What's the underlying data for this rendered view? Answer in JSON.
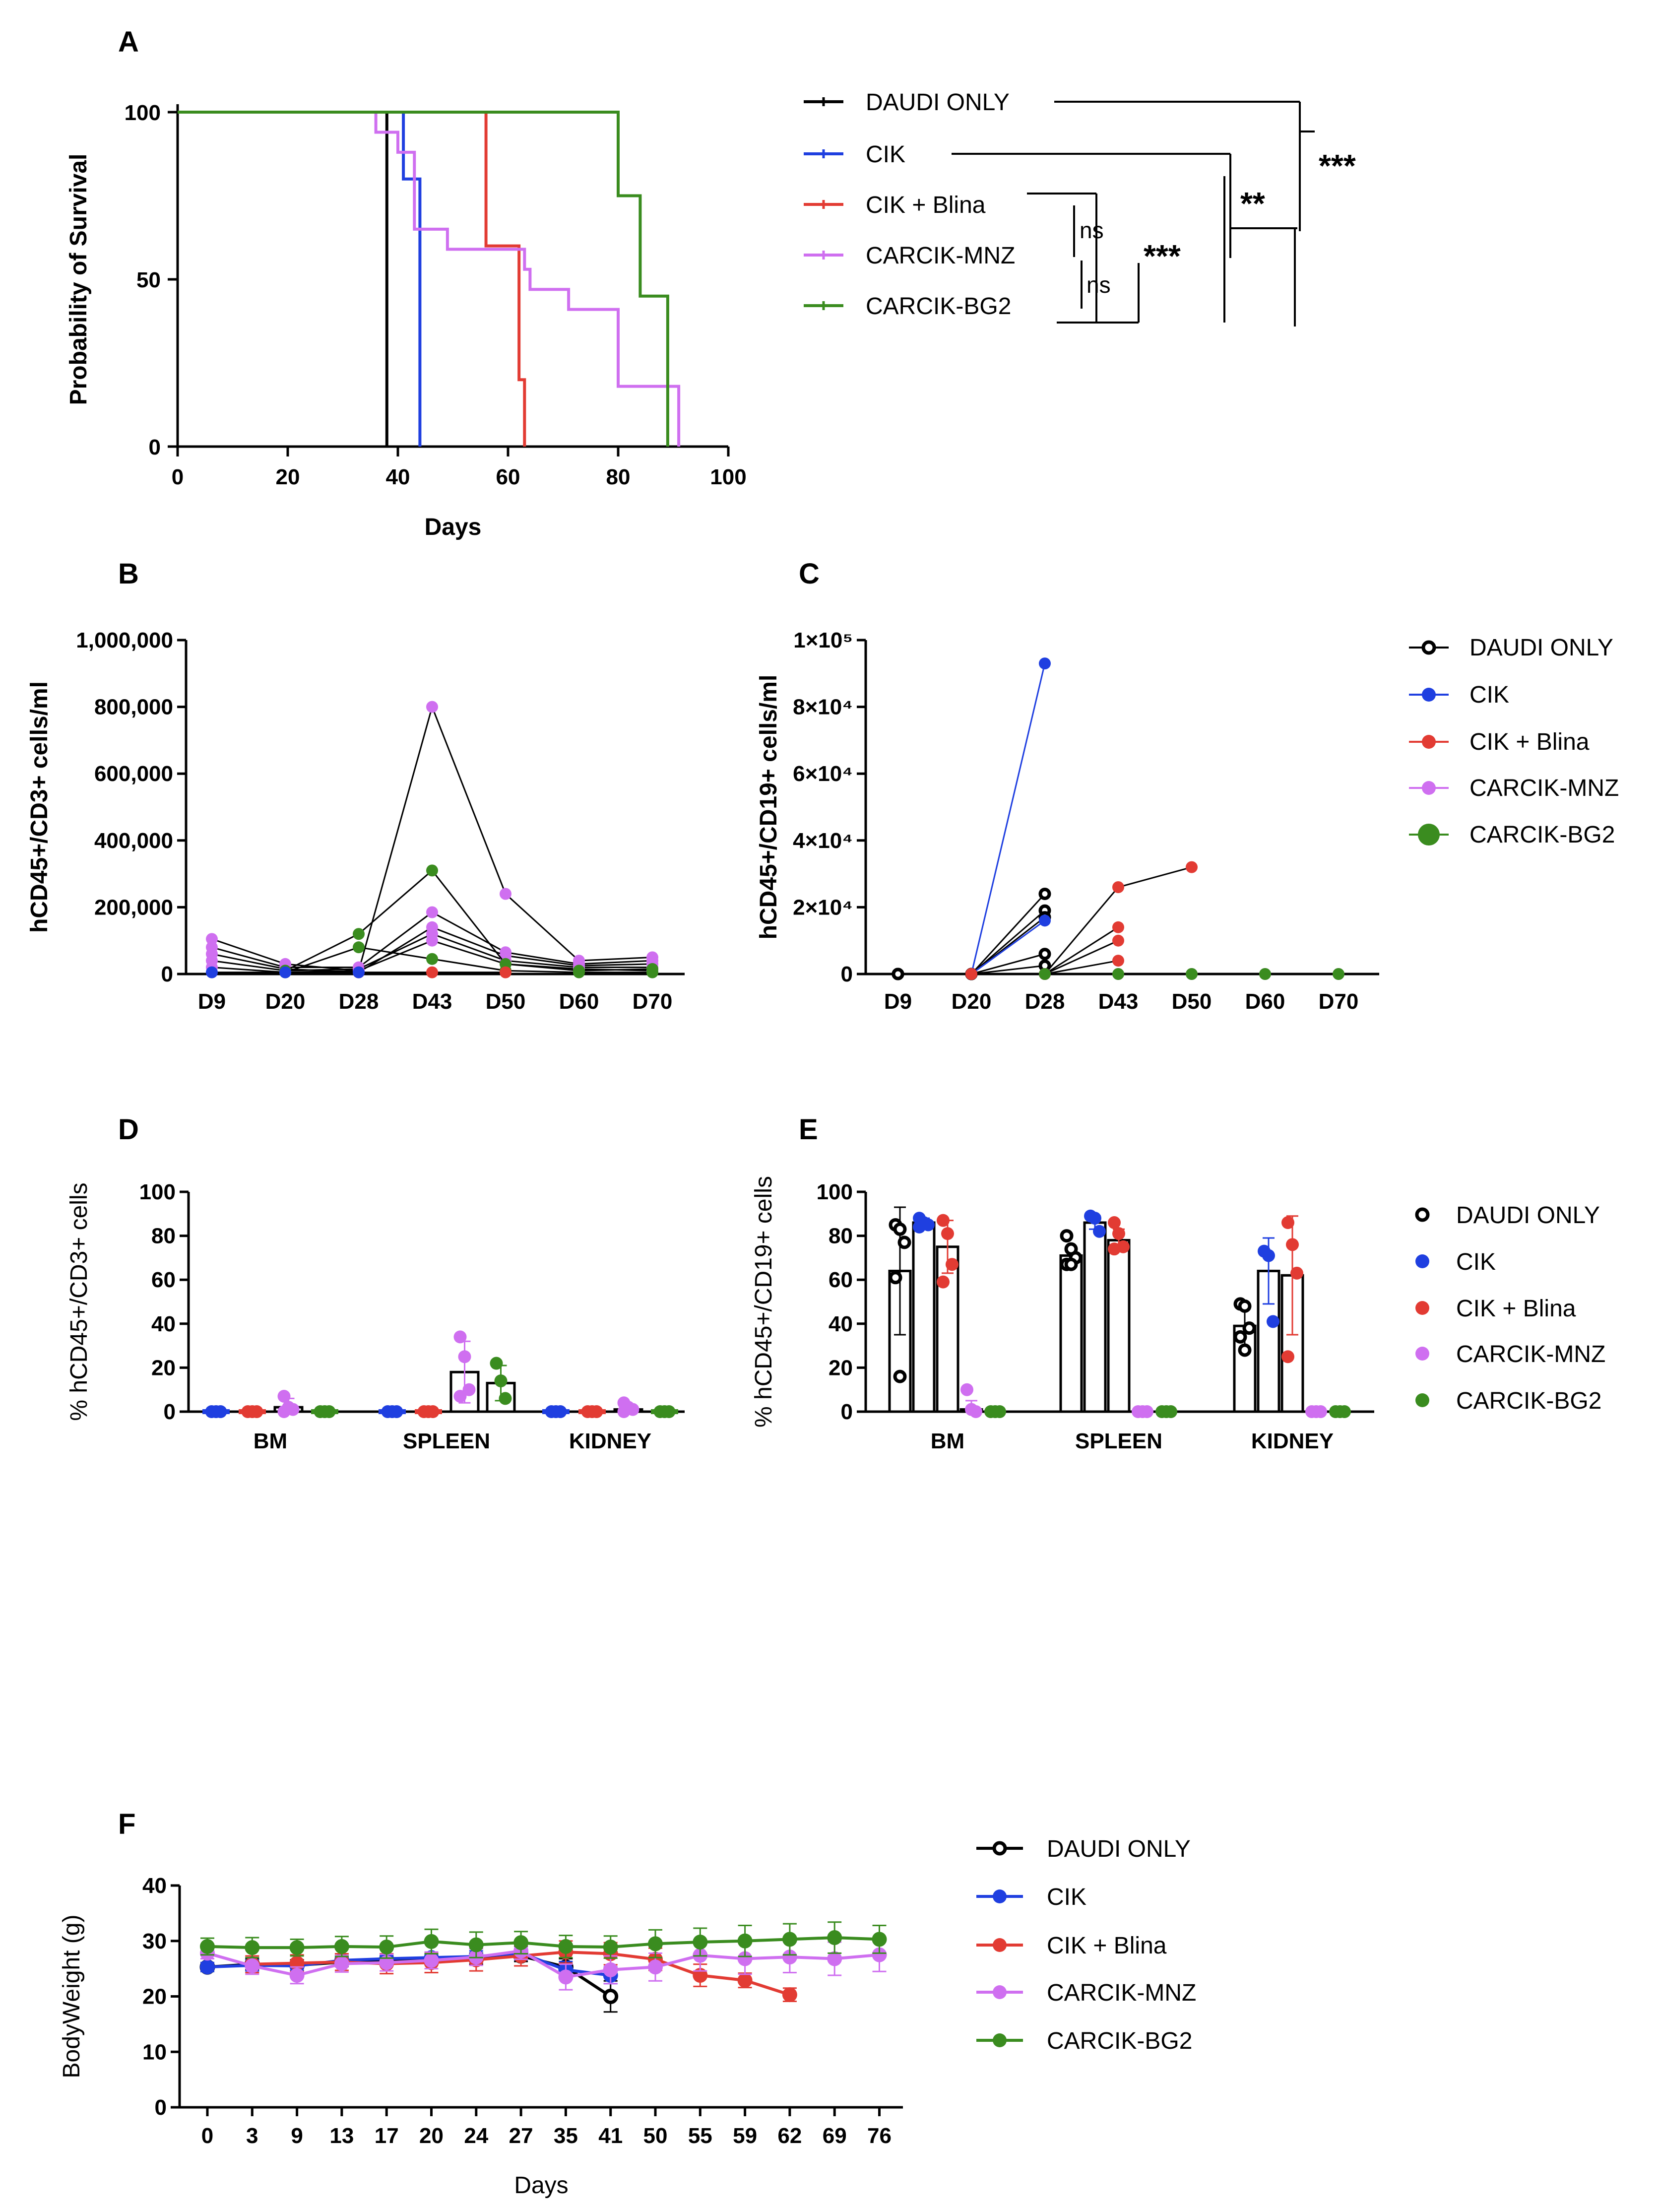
{
  "colors": {
    "daudi": "#000000",
    "cik": "#1f3fe0",
    "blina": "#e23b33",
    "mnz": "#cf6ff0",
    "bg2": "#3a8c1f"
  },
  "legend_labels": [
    "DAUDI ONLY",
    "CIK",
    "CIK + Blina",
    "CARCIK-MNZ",
    "CARCIK-BG2"
  ],
  "significance": {
    "ns1": "ns",
    "ns2": "ns",
    "s3": "***",
    "s2": "**",
    "s1": "***"
  },
  "chart_data": [
    {
      "panel": "A",
      "type": "line",
      "title": "",
      "xlabel": "Days",
      "ylabel": "Probability of Survival",
      "xlim": [
        0,
        100
      ],
      "ylim": [
        0,
        100
      ],
      "xticks": [
        "0",
        "20",
        "40",
        "60",
        "80",
        "100"
      ],
      "yticks": [
        "0",
        "50",
        "100"
      ],
      "series": [
        {
          "name": "DAUDI ONLY",
          "key": "daudi",
          "steps": [
            [
              0,
              100
            ],
            [
              38,
              100
            ],
            [
              38,
              0
            ]
          ]
        },
        {
          "name": "CIK",
          "key": "cik",
          "steps": [
            [
              0,
              100
            ],
            [
              41,
              100
            ],
            [
              41,
              80
            ],
            [
              44,
              80
            ],
            [
              44,
              0
            ]
          ]
        },
        {
          "name": "CIK + Blina",
          "key": "blina",
          "steps": [
            [
              0,
              100
            ],
            [
              56,
              100
            ],
            [
              56,
              60
            ],
            [
              62,
              60
            ],
            [
              62,
              20
            ],
            [
              63,
              20
            ],
            [
              63,
              0
            ]
          ]
        },
        {
          "name": "CARCIK-MNZ",
          "key": "mnz",
          "steps": [
            [
              0,
              100
            ],
            [
              36,
              100
            ],
            [
              36,
              94
            ],
            [
              40,
              94
            ],
            [
              40,
              88
            ],
            [
              43,
              88
            ],
            [
              43,
              65
            ],
            [
              49,
              65
            ],
            [
              49,
              59
            ],
            [
              57,
              59
            ],
            [
              57,
              59
            ],
            [
              63,
              59
            ],
            [
              63,
              53
            ],
            [
              64,
              53
            ],
            [
              64,
              47
            ],
            [
              71,
              47
            ],
            [
              71,
              41
            ],
            [
              80,
              41
            ],
            [
              80,
              18
            ],
            [
              91,
              18
            ],
            [
              91,
              0
            ]
          ]
        },
        {
          "name": "CARCIK-BG2",
          "key": "bg2",
          "steps": [
            [
              0,
              100
            ],
            [
              80,
              100
            ],
            [
              80,
              75
            ],
            [
              84,
              75
            ],
            [
              84,
              45
            ],
            [
              89,
              45
            ],
            [
              89,
              0
            ]
          ]
        }
      ]
    },
    {
      "panel": "B",
      "type": "line",
      "ylabel": "hCD45+/CD3+ cells/ml",
      "categories": [
        "D9",
        "D20",
        "D28",
        "D43",
        "D50",
        "D60",
        "D70"
      ],
      "ylim": [
        0,
        1000000
      ],
      "yticks": [
        "0",
        "200,000",
        "400,000",
        "600,000",
        "800,000",
        "1,000,000"
      ],
      "ytick_values": [
        0,
        200000,
        400000,
        600000,
        800000,
        1000000
      ],
      "series": [
        {
          "key": "mnz",
          "values": [
            105000,
            30000,
            10000,
            800000,
            240000,
            40000,
            50000
          ]
        },
        {
          "key": "mnz",
          "values": [
            80000,
            20000,
            20000,
            185000,
            65000,
            30000,
            40000
          ]
        },
        {
          "key": "mnz",
          "values": [
            60000,
            15000,
            5000,
            140000,
            55000,
            25000,
            30000
          ]
        },
        {
          "key": "mnz",
          "values": [
            40000,
            10000,
            15000,
            120000,
            40000,
            20000,
            20000
          ]
        },
        {
          "key": "mnz",
          "values": [
            20000,
            5000,
            10000,
            100000,
            30000,
            15000,
            10000
          ]
        },
        {
          "key": "bg2",
          "values": [
            null,
            10000,
            120000,
            310000,
            30000,
            10000,
            15000
          ]
        },
        {
          "key": "bg2",
          "values": [
            null,
            5000,
            80000,
            45000,
            10000,
            5000,
            5000
          ]
        },
        {
          "key": "blina",
          "values": [
            null,
            null,
            5000,
            5000,
            5000,
            null,
            null
          ]
        },
        {
          "key": "cik",
          "values": [
            5000,
            5000,
            5000,
            null,
            null,
            null,
            null
          ]
        }
      ]
    },
    {
      "panel": "C",
      "type": "line",
      "ylabel": "hCD45+/CD19+ cells/ml",
      "categories": [
        "D9",
        "D20",
        "D28",
        "D43",
        "D50",
        "D60",
        "D70"
      ],
      "ylim": [
        0,
        100000
      ],
      "yticks": [
        "0",
        "2×10⁴",
        "4×10⁴",
        "6×10⁴",
        "8×10⁴",
        "1×10⁵"
      ],
      "ytick_values": [
        0,
        20000,
        40000,
        60000,
        80000,
        100000
      ],
      "series": [
        {
          "key": "daudi",
          "values": [
            0,
            0,
            24000,
            null,
            null,
            null,
            null
          ]
        },
        {
          "key": "daudi",
          "values": [
            0,
            0,
            19000,
            null,
            null,
            null,
            null
          ]
        },
        {
          "key": "daudi",
          "values": [
            0,
            0,
            17000,
            null,
            null,
            null,
            null
          ]
        },
        {
          "key": "daudi",
          "values": [
            0,
            0,
            6000,
            null,
            null,
            null,
            null
          ]
        },
        {
          "key": "daudi",
          "values": [
            0,
            0,
            2500,
            null,
            null,
            null,
            null
          ]
        },
        {
          "key": "cik",
          "values": [
            null,
            0,
            93000,
            null,
            null,
            null,
            null
          ]
        },
        {
          "key": "cik",
          "values": [
            null,
            0,
            16000,
            null,
            null,
            null,
            null
          ]
        },
        {
          "key": "blina",
          "values": [
            null,
            0,
            0,
            26000,
            32000,
            null,
            null
          ]
        },
        {
          "key": "blina",
          "values": [
            null,
            0,
            0,
            14000,
            null,
            null,
            null
          ]
        },
        {
          "key": "blina",
          "values": [
            null,
            0,
            0,
            10000,
            null,
            null,
            null
          ]
        },
        {
          "key": "blina",
          "values": [
            null,
            0,
            0,
            4000,
            null,
            null,
            null
          ]
        },
        {
          "key": "mnz",
          "values": [
            null,
            null,
            0,
            0,
            0,
            0,
            0
          ]
        },
        {
          "key": "bg2",
          "values": [
            null,
            null,
            0,
            0,
            0,
            0,
            0
          ]
        }
      ]
    },
    {
      "panel": "D",
      "type": "bar",
      "ylabel": "% hCD45+/CD3+ cells",
      "categories": [
        "BM",
        "SPLEEN",
        "KIDNEY"
      ],
      "ylim": [
        0,
        100
      ],
      "yticks": [
        "0",
        "20",
        "40",
        "60",
        "80",
        "100"
      ],
      "groups": [
        [
          {
            "key": "cik",
            "mean": 0,
            "err": 0,
            "pts": [
              0,
              0,
              0
            ]
          },
          {
            "key": "blina",
            "mean": 0,
            "err": 0,
            "pts": [
              0,
              0,
              0
            ]
          },
          {
            "key": "mnz",
            "mean": 2,
            "err": 4,
            "pts": [
              7,
              2,
              1,
              0
            ]
          },
          {
            "key": "bg2",
            "mean": 0,
            "err": 0,
            "pts": [
              0,
              0,
              0
            ]
          }
        ],
        [
          {
            "key": "cik",
            "mean": 0,
            "err": 0,
            "pts": [
              0,
              0,
              0
            ]
          },
          {
            "key": "blina",
            "mean": 0,
            "err": 0,
            "pts": [
              0,
              0,
              0
            ]
          },
          {
            "key": "mnz",
            "mean": 18,
            "err": 14,
            "pts": [
              34,
              25,
              10,
              7
            ]
          },
          {
            "key": "bg2",
            "mean": 13,
            "err": 8,
            "pts": [
              22,
              14,
              6
            ]
          }
        ],
        [
          {
            "key": "cik",
            "mean": 0,
            "err": 0,
            "pts": [
              0,
              0,
              0
            ]
          },
          {
            "key": "blina",
            "mean": 0,
            "err": 0,
            "pts": [
              0,
              0,
              0
            ]
          },
          {
            "key": "mnz",
            "mean": 1,
            "err": 2,
            "pts": [
              4,
              2,
              1,
              0
            ]
          },
          {
            "key": "bg2",
            "mean": 0,
            "err": 0,
            "pts": [
              0,
              0,
              0
            ]
          }
        ]
      ]
    },
    {
      "panel": "E",
      "type": "bar",
      "ylabel": "% hCD45+/CD19+ cells",
      "categories": [
        "BM",
        "SPLEEN",
        "KIDNEY"
      ],
      "ylim": [
        0,
        100
      ],
      "yticks": [
        "0",
        "20",
        "40",
        "60",
        "80",
        "100"
      ],
      "groups": [
        [
          {
            "key": "daudi",
            "mean": 64,
            "err": 29,
            "pts": [
              85,
              83,
              77,
              61,
              16
            ]
          },
          {
            "key": "cik",
            "mean": 86,
            "err": 2,
            "pts": [
              88,
              86,
              85,
              84
            ]
          },
          {
            "key": "blina",
            "mean": 75,
            "err": 12,
            "pts": [
              87,
              81,
              67,
              59
            ]
          },
          {
            "key": "mnz",
            "mean": 1,
            "err": 4,
            "pts": [
              10,
              1,
              0
            ]
          },
          {
            "key": "bg2",
            "mean": 0,
            "err": 0,
            "pts": [
              0,
              0,
              0
            ]
          }
        ],
        [
          {
            "key": "daudi",
            "mean": 71,
            "err": 4,
            "pts": [
              80,
              74,
              70,
              67,
              67
            ]
          },
          {
            "key": "cik",
            "mean": 86,
            "err": 3,
            "pts": [
              89,
              88,
              82
            ]
          },
          {
            "key": "blina",
            "mean": 78,
            "err": 5,
            "pts": [
              86,
              81,
              75,
              74
            ]
          },
          {
            "key": "mnz",
            "mean": 0,
            "err": 0,
            "pts": [
              0,
              0,
              0
            ]
          },
          {
            "key": "bg2",
            "mean": 0,
            "err": 0,
            "pts": [
              0,
              0,
              0
            ]
          }
        ],
        [
          {
            "key": "daudi",
            "mean": 39,
            "err": 10,
            "pts": [
              49,
              48,
              38,
              34,
              28
            ]
          },
          {
            "key": "cik",
            "mean": 64,
            "err": 15,
            "pts": [
              73,
              71,
              41
            ]
          },
          {
            "key": "blina",
            "mean": 62,
            "err": 27,
            "pts": [
              86,
              76,
              63,
              25
            ]
          },
          {
            "key": "mnz",
            "mean": 0,
            "err": 0,
            "pts": [
              0,
              0,
              0
            ]
          },
          {
            "key": "bg2",
            "mean": 0,
            "err": 0,
            "pts": [
              0,
              0,
              0
            ]
          }
        ]
      ]
    },
    {
      "panel": "F",
      "type": "line",
      "xlabel": "Days",
      "ylabel": "BodyWeight (g)",
      "categories": [
        "0",
        "3",
        "9",
        "13",
        "17",
        "20",
        "24",
        "27",
        "35",
        "41",
        "50",
        "55",
        "59",
        "62",
        "69",
        "76"
      ],
      "ylim": [
        0,
        40
      ],
      "yticks": [
        "0",
        "10",
        "20",
        "30",
        "40"
      ],
      "series": [
        {
          "key": "daudi",
          "values": [
            25.3,
            25.8,
            25.6,
            26.2,
            26.5,
            26.6,
            26.8,
            27.3,
            25.3,
            20.0,
            null,
            null,
            null,
            null,
            null,
            null
          ],
          "err": [
            0.8,
            1.0,
            1.0,
            0.8,
            0.8,
            0.8,
            1.0,
            1.0,
            1.5,
            2.8,
            null,
            null,
            null,
            null,
            null,
            null
          ]
        },
        {
          "key": "cik",
          "values": [
            25.3,
            25.6,
            25.5,
            26.5,
            26.8,
            27.0,
            27.2,
            27.8,
            24.8,
            23.8,
            null,
            null,
            null,
            null,
            null,
            null
          ],
          "err": [
            0.8,
            1.0,
            0.8,
            0.8,
            0.8,
            1.0,
            1.0,
            1.2,
            1.5,
            1.5,
            null,
            null,
            null,
            null,
            null,
            null
          ]
        },
        {
          "key": "blina",
          "values": [
            null,
            25.8,
            26.0,
            26.2,
            25.9,
            26.1,
            26.6,
            27.3,
            28.0,
            27.7,
            26.7,
            23.8,
            22.9,
            20.3,
            null,
            null
          ],
          "err": [
            null,
            1.5,
            1.5,
            1.5,
            1.8,
            1.8,
            2.0,
            1.8,
            2.0,
            2.0,
            2.0,
            2.0,
            1.3,
            1.2,
            null,
            null
          ]
        },
        {
          "key": "mnz",
          "values": [
            27.8,
            25.5,
            23.8,
            25.9,
            26.1,
            26.5,
            27.1,
            28.2,
            23.5,
            24.8,
            25.3,
            27.4,
            26.8,
            27.1,
            26.8,
            27.5
          ],
          "err": [
            1.0,
            1.5,
            1.5,
            1.5,
            1.5,
            1.5,
            1.5,
            1.5,
            2.3,
            2.5,
            2.5,
            2.8,
            2.8,
            2.8,
            3.0,
            3.0
          ]
        },
        {
          "key": "bg2",
          "values": [
            29.0,
            28.8,
            28.8,
            29.0,
            28.9,
            29.9,
            29.3,
            29.7,
            29.0,
            28.9,
            29.5,
            29.8,
            30.0,
            30.3,
            30.6,
            30.3
          ],
          "err": [
            1.5,
            1.8,
            1.5,
            1.8,
            2.0,
            2.2,
            2.3,
            2.0,
            2.0,
            2.0,
            2.5,
            2.5,
            2.8,
            2.8,
            2.8,
            2.5
          ]
        }
      ]
    }
  ]
}
